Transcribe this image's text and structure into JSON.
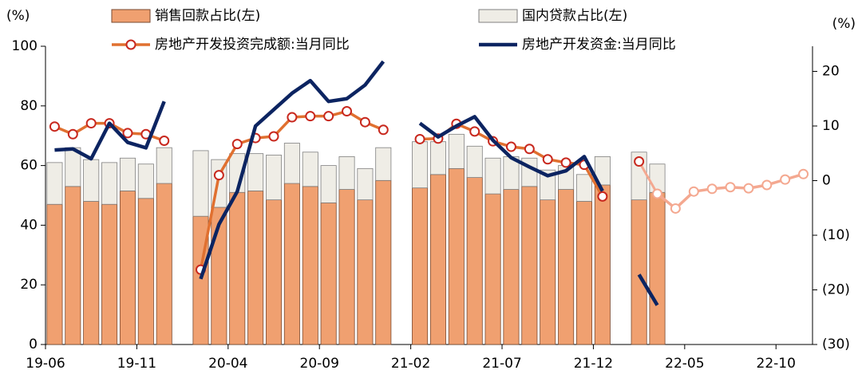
{
  "chart_data": {
    "type": "bar-line",
    "y_unit": "(%)",
    "y2_unit": "(%)",
    "categories": [
      "19-06",
      null,
      null,
      null,
      null,
      "19-11",
      null,
      null,
      null,
      null,
      "20-04",
      null,
      null,
      null,
      null,
      "20-09",
      null,
      null,
      null,
      null,
      "21-02",
      null,
      null,
      null,
      null,
      "21-07",
      null,
      null,
      null,
      null,
      "21-12",
      null,
      null,
      null,
      null,
      "22-05",
      null,
      null,
      null,
      null,
      "22-10",
      null
    ],
    "series": [
      {
        "name": "销售回款占比(左)",
        "type": "bar",
        "color": "#f0a070",
        "edge": "#7a4a30",
        "values": [
          47,
          53,
          48,
          47,
          51.5,
          49,
          54,
          null,
          43,
          46,
          51,
          51.5,
          48.5,
          54,
          53,
          47.5,
          52,
          48.5,
          55,
          null,
          52.5,
          57,
          59,
          56,
          50.5,
          52,
          53,
          48.5,
          52,
          48,
          53.5,
          null,
          48.5,
          51,
          null,
          null,
          null,
          null,
          null,
          null,
          null,
          null
        ]
      },
      {
        "name": "国内贷款占比(左)",
        "type": "bar",
        "color": "#efede6",
        "edge": "#808080",
        "values": [
          14,
          13,
          14,
          14,
          11,
          11.5,
          12,
          null,
          22,
          16,
          13,
          12.5,
          15,
          13.5,
          11.5,
          12.5,
          11,
          10.5,
          11,
          null,
          15.5,
          11,
          11.5,
          10.5,
          12,
          11,
          9.5,
          10,
          8,
          9,
          9.5,
          null,
          16,
          9.5,
          null,
          null,
          null,
          null,
          null,
          null,
          null,
          null
        ]
      },
      {
        "name": "房地产开发投资完成额:当月同比",
        "type": "line",
        "axis": "y2",
        "color": "#e07030",
        "marker_color": "#c8281e",
        "faded_color": "#f4a890",
        "faded_from": 33,
        "values": [
          9.9,
          8.5,
          10.5,
          10.5,
          8.7,
          8.5,
          7.3,
          null,
          -16.3,
          1,
          6.7,
          7.8,
          8.1,
          11.6,
          11.8,
          11.8,
          12.7,
          10.7,
          9.3,
          null,
          7.6,
          7.7,
          10.4,
          9,
          7.2,
          6.2,
          5.8,
          3.9,
          3.3,
          2.9,
          -2.9,
          null,
          3.5,
          -2.4,
          -5.1,
          -2,
          -1.5,
          -1.2,
          -1.4,
          -0.8,
          0.2,
          1.2
        ]
      },
      {
        "name": "房地产开发资金:当月同比",
        "type": "line",
        "axis": "y2",
        "color": "#0c2461",
        "values": [
          5.6,
          5.8,
          4,
          10.5,
          7,
          6,
          14.5,
          null,
          -18,
          -8,
          -2,
          10,
          13,
          16,
          18.3,
          14.5,
          15,
          17.5,
          21.8,
          null,
          10.5,
          8,
          10,
          11.7,
          7.4,
          4.2,
          2.5,
          0.9,
          1.8,
          4.4,
          -1.9,
          null,
          -17.2,
          -22.8,
          null,
          null,
          null,
          null,
          null,
          null,
          null,
          null
        ]
      }
    ],
    "ylim": [
      0,
      100
    ],
    "yticks": [
      0,
      20,
      40,
      60,
      80,
      100
    ],
    "y2lim": [
      -30,
      24.6
    ],
    "y2ticks": [
      20,
      10,
      0,
      {
        "value": -10,
        "label": "(10)"
      },
      {
        "value": -20,
        "label": "(20)"
      },
      {
        "value": -30,
        "label": "(30)"
      }
    ],
    "negative_tick_color": "#d00000"
  }
}
